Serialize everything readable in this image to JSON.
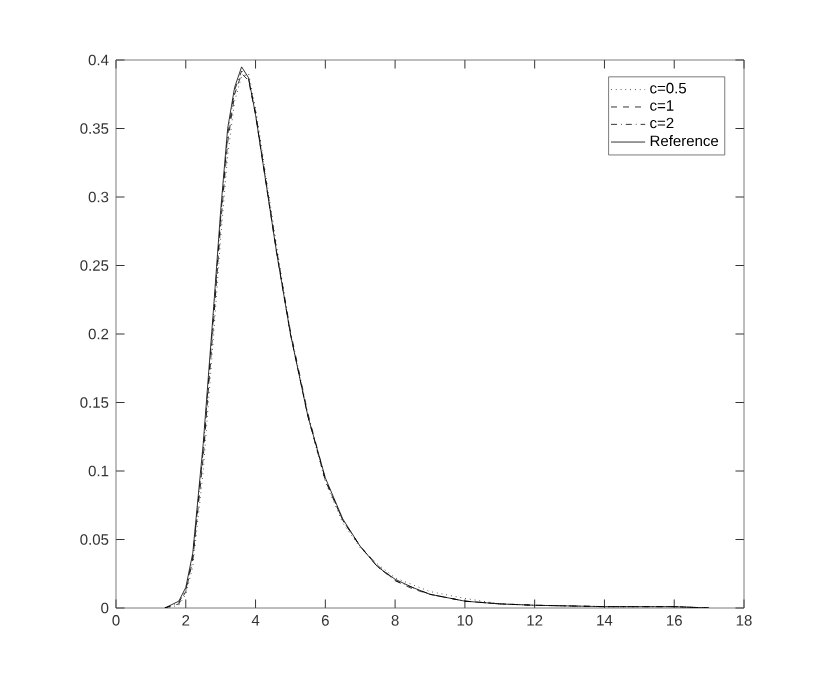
{
  "chart_data": {
    "type": "line",
    "xlim": [
      0,
      18
    ],
    "ylim": [
      0,
      0.4
    ],
    "xticks": [
      0,
      2,
      4,
      6,
      8,
      10,
      12,
      14,
      16,
      18
    ],
    "yticks": [
      0,
      0.05,
      0.1,
      0.15,
      0.2,
      0.25,
      0.3,
      0.35,
      0.4
    ],
    "legend": "top right",
    "marker": "none",
    "x": [
      1.4,
      1.8,
      2.0,
      2.2,
      2.5,
      2.8,
      3.0,
      3.2,
      3.4,
      3.6,
      3.8,
      4.0,
      4.3,
      4.6,
      5.0,
      5.5,
      6.0,
      6.5,
      7.0,
      7.5,
      8.0,
      8.5,
      9.0,
      10,
      11,
      12,
      14,
      16,
      17
    ],
    "series": [
      {
        "name": "c=0.5",
        "color": "#000000",
        "line_style": "dotted",
        "values": [
          0,
          0.002,
          0.01,
          0.03,
          0.1,
          0.2,
          0.27,
          0.33,
          0.37,
          0.388,
          0.39,
          0.365,
          0.315,
          0.265,
          0.2,
          0.14,
          0.092,
          0.062,
          0.044,
          0.032,
          0.022,
          0.017,
          0.012,
          0.007,
          0.003,
          0.002,
          0.001,
          0.001,
          0
        ]
      },
      {
        "name": "c=1",
        "color": "#000000",
        "line_style": "dashed",
        "values": [
          0,
          0.003,
          0.012,
          0.035,
          0.11,
          0.21,
          0.28,
          0.34,
          0.375,
          0.39,
          0.385,
          0.36,
          0.31,
          0.26,
          0.2,
          0.14,
          0.093,
          0.064,
          0.045,
          0.031,
          0.02,
          0.014,
          0.01,
          0.005,
          0.003,
          0.002,
          0.001,
          0.001,
          0
        ]
      },
      {
        "name": "c=2",
        "color": "#000000",
        "line_style": "dashdot",
        "values": [
          0,
          0.004,
          0.013,
          0.037,
          0.115,
          0.215,
          0.285,
          0.345,
          0.378,
          0.392,
          0.386,
          0.362,
          0.312,
          0.262,
          0.202,
          0.142,
          0.094,
          0.064,
          0.045,
          0.03,
          0.02,
          0.015,
          0.01,
          0.005,
          0.003,
          0.002,
          0.001,
          0.001,
          0
        ]
      },
      {
        "name": "Reference",
        "color": "#000000",
        "line_style": "solid",
        "values": [
          0,
          0.005,
          0.015,
          0.04,
          0.12,
          0.22,
          0.29,
          0.35,
          0.38,
          0.395,
          0.387,
          0.36,
          0.31,
          0.26,
          0.2,
          0.14,
          0.095,
          0.065,
          0.045,
          0.03,
          0.021,
          0.015,
          0.01,
          0.005,
          0.003,
          0.002,
          0.001,
          0.001,
          0
        ]
      }
    ]
  }
}
